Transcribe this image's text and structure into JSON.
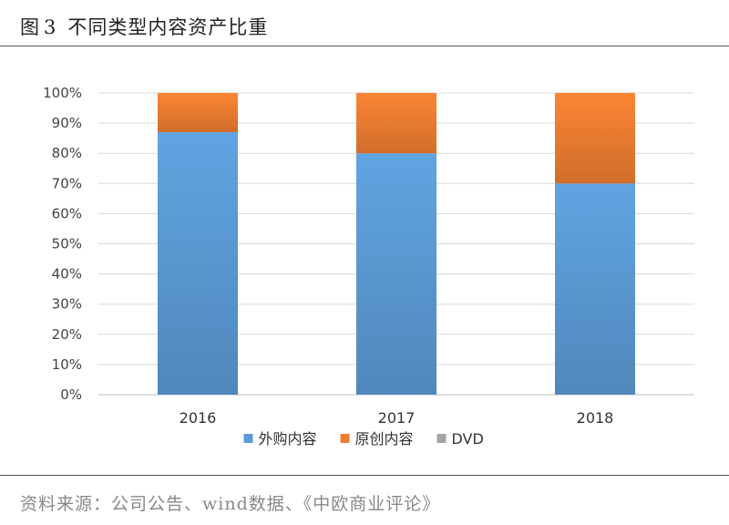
{
  "figure": {
    "label": "图",
    "number": "3",
    "title": "不同类型内容资产比重"
  },
  "source_note": "资料来源：公司公告、wind数据、《中欧商业评论》",
  "chart_data": {
    "type": "bar",
    "stacked": true,
    "categories": [
      "2016",
      "2017",
      "2018"
    ],
    "series": [
      {
        "name": "外购内容",
        "values": [
          87,
          80,
          70
        ],
        "color": "#5B9BD5"
      },
      {
        "name": "原创内容",
        "values": [
          13,
          20,
          30
        ],
        "color": "#ED7D31"
      },
      {
        "name": "DVD",
        "values": [
          0,
          0,
          0
        ],
        "color": "#A5A5A5"
      }
    ],
    "ylim": [
      0,
      100
    ],
    "y_ticks": [
      "0%",
      "10%",
      "20%",
      "30%",
      "40%",
      "50%",
      "60%",
      "70%",
      "80%",
      "90%",
      "100%"
    ],
    "grid": true,
    "legend_position": "bottom"
  }
}
